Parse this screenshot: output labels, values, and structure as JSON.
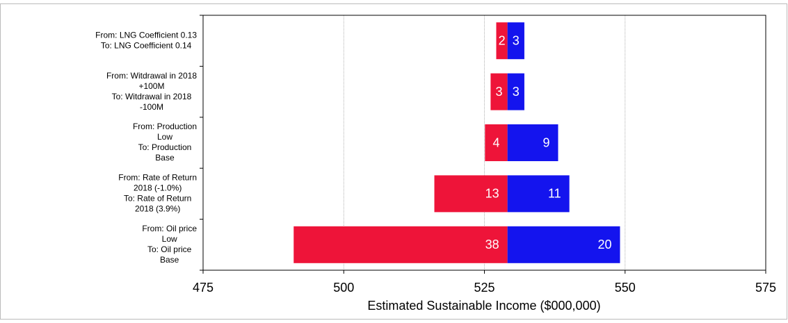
{
  "chart_data": {
    "type": "tornado",
    "x_label": "Estimated Sustainable Income ($000,000)",
    "categories": [
      [
        "From: LNG Coefficient 0.13",
        "To: LNG Coefficient 0.14"
      ],
      [
        "From: Witdrawal in 2018",
        "+100M",
        "To: Witdrawal in 2018",
        "-100M"
      ],
      [
        "From: Production",
        "Low",
        "To: Production",
        "Base"
      ],
      [
        "From: Rate of Return",
        "2018 (-1.0%)",
        "To: Rate of Return",
        "2018 (3.9%)"
      ],
      [
        "From: Oil price",
        "Low",
        "To: Oil price",
        "Base"
      ]
    ],
    "base": 529.1,
    "series": [
      {
        "color": "#ee1439",
        "values": [
          2,
          3,
          4,
          13,
          38
        ]
      },
      {
        "color": "#1414ee",
        "values": [
          3,
          3,
          9,
          11,
          20
        ]
      }
    ],
    "xlim": [
      475,
      575
    ],
    "xticks": [
      475,
      500,
      525,
      550,
      575
    ],
    "grid": true
  }
}
